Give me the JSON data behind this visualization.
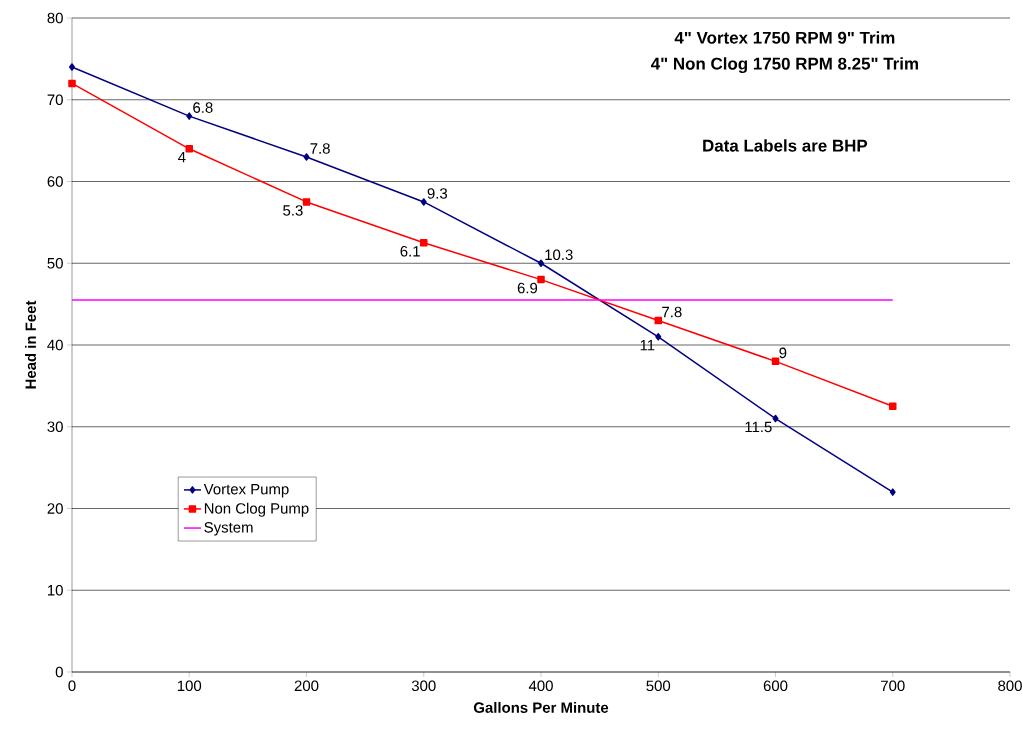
{
  "chart_data": {
    "type": "line",
    "xlabel": "Gallons Per Minute",
    "ylabel": "Head in Feet",
    "annotations": [
      "4\" Vortex  1750 RPM  9\" Trim",
      "4\" Non Clog  1750 RPM  8.25\" Trim",
      "Data Labels are BHP",
      {
        "text": "6.8",
        "x": 100,
        "y": 68
      },
      {
        "text": "7.8",
        "x": 200,
        "y": 63
      },
      {
        "text": "9.3",
        "x": 300,
        "y": 57.5
      },
      {
        "text": "10.3",
        "x": 400,
        "y": 50
      },
      {
        "text": "11",
        "x": 500,
        "y": 41
      },
      {
        "text": "11.5",
        "x": 600,
        "y": 31
      },
      {
        "text": "4",
        "x": 100,
        "y": 64
      },
      {
        "text": "5.3",
        "x": 200,
        "y": 57.5
      },
      {
        "text": "6.1",
        "x": 300,
        "y": 52.5
      },
      {
        "text": "6.9",
        "x": 400,
        "y": 48
      },
      {
        "text": "7.8",
        "x": 500,
        "y": 43
      },
      {
        "text": "9",
        "x": 600,
        "y": 38
      }
    ],
    "x": [
      0,
      100,
      200,
      300,
      400,
      500,
      600,
      700
    ],
    "xlim": [
      0,
      800
    ],
    "xticks": [
      0,
      100,
      200,
      300,
      400,
      500,
      600,
      700,
      800
    ],
    "ylim": [
      0,
      80
    ],
    "yticks": [
      0,
      10,
      20,
      30,
      40,
      50,
      60,
      70,
      80
    ],
    "grid": "y",
    "legend": "bottom left",
    "line_style": "solid",
    "series": [
      {
        "name": "Vortex Pump",
        "color": "#000080",
        "marker": "diamond",
        "values": [
          74,
          68,
          63,
          57.5,
          50,
          41,
          31,
          22
        ]
      },
      {
        "name": "Non Clog Pump",
        "color": "#ff0000",
        "marker": "square",
        "values": [
          72,
          64,
          57.5,
          52.5,
          48,
          43,
          38,
          32.5
        ]
      },
      {
        "name": "System",
        "color": "#ff00ff",
        "marker": "none",
        "x": [
          0,
          700
        ],
        "values": [
          45.5,
          45.5
        ]
      }
    ]
  }
}
